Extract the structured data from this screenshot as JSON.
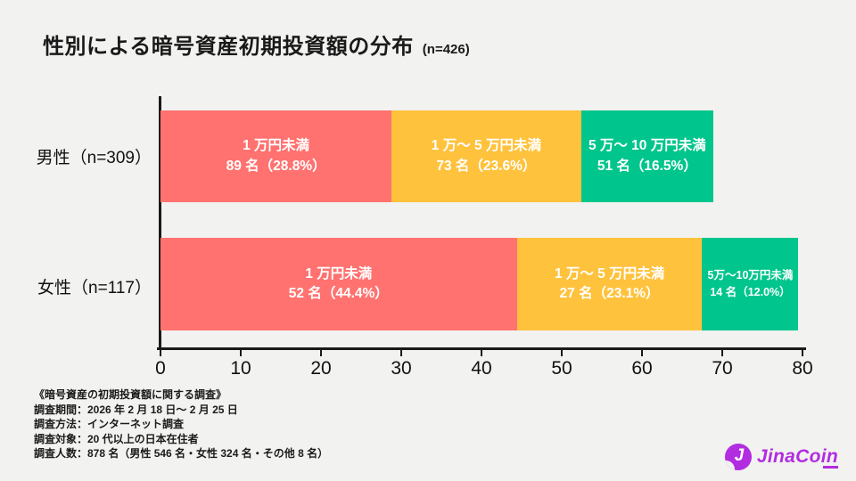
{
  "page": {
    "background": "#f2f2f0"
  },
  "header": {
    "title": "性別による暗号資産初期投資額の分布",
    "sample_note": "(n=426)"
  },
  "chart_data": {
    "type": "bar",
    "subtype": "horizontal-stacked",
    "title": "性別による暗号資産初期投資額の分布 (n=426)",
    "categories": [
      "男性（n=309）",
      "女性（n=117）"
    ],
    "legend": [
      "1万円未満",
      "1万〜5万円未満",
      "5万〜10万円未満"
    ],
    "colors": [
      "#FF7270",
      "#FFC23D",
      "#00C58C"
    ],
    "x_axis": {
      "min": 0,
      "max": 80,
      "tick_interval": 10,
      "ticks": [
        0,
        10,
        20,
        30,
        40,
        50,
        60,
        70,
        80
      ]
    },
    "grid": false,
    "legend_position": "none",
    "rows": [
      {
        "category": "男性（n=309）",
        "segments": [
          {
            "label": "1 万円未満",
            "count": 89,
            "percent": 28.8,
            "count_label": "89 名（28.8%）"
          },
          {
            "label": "1 万〜 5 万円未満",
            "count": 73,
            "percent": 23.6,
            "count_label": "73 名（23.6%）"
          },
          {
            "label": "5 万〜 10 万円未満",
            "count": 51,
            "percent": 16.5,
            "count_label": "51 名（16.5%）"
          }
        ]
      },
      {
        "category": "女性（n=117）",
        "segments": [
          {
            "label": "1 万円未満",
            "count": 52,
            "percent": 44.4,
            "count_label": "52 名（44.4%）"
          },
          {
            "label": "1 万〜 5 万円未満",
            "count": 27,
            "percent": 23.1,
            "count_label": "27 名（23.1%）"
          },
          {
            "label": "5万〜10万円未満",
            "count": 14,
            "percent": 12.0,
            "count_label": "14 名（12.0%）",
            "small": true
          }
        ]
      }
    ]
  },
  "footnote": {
    "lines": [
      "《暗号資産の初期投資額に関する調査》",
      "調査期間：2026 年 2 月 18 日〜 2 月 25 日",
      "調査方法：インターネット調査",
      "調査対象：20 代以上の日本在住者",
      "調査人数：878 名（男性 546 名・女性 324 名・その他 8 名）"
    ]
  },
  "logo": {
    "icon_letter": "J",
    "text": "JinaCoin",
    "color": "#B22CE0"
  }
}
